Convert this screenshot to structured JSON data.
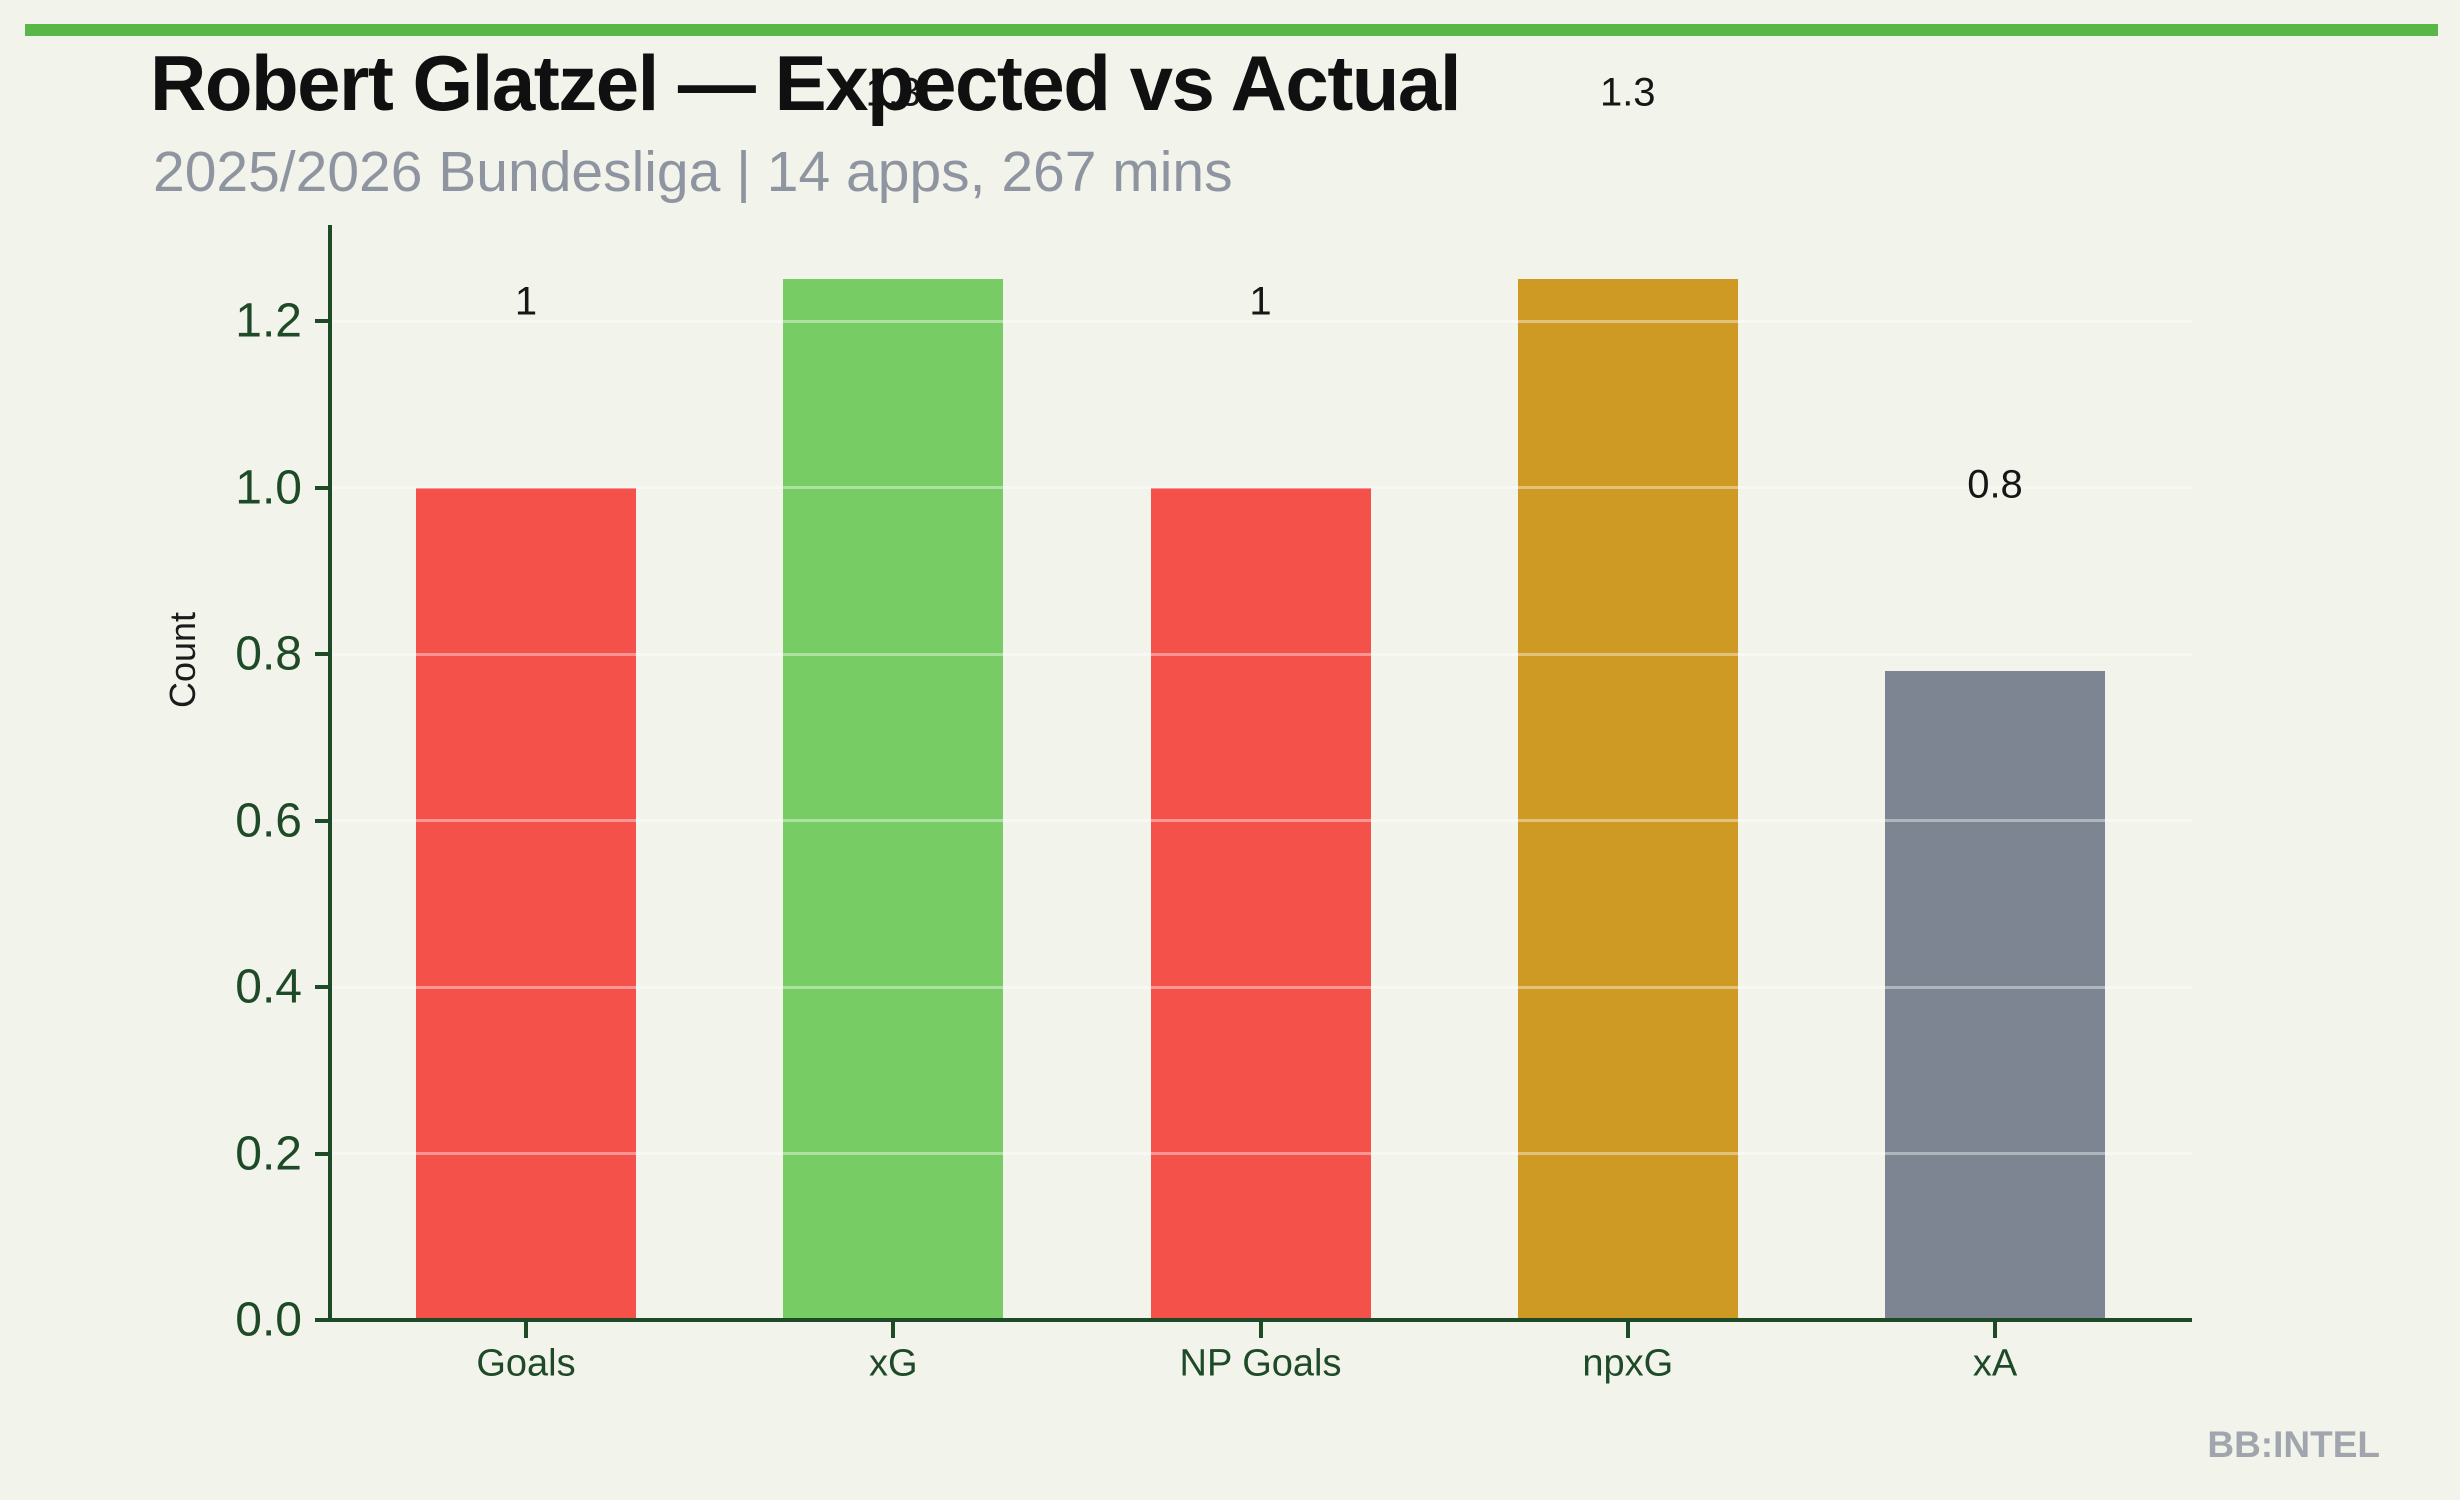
{
  "page": {
    "background_color": "#f2f3eb",
    "accent_strip_color": "#5bb648",
    "watermark": "BB:INTEL",
    "watermark_color": "#a1a6ae"
  },
  "header": {
    "title": "Robert Glatzel — Expected vs Actual",
    "subtitle": "2025/2026 Bundesliga | 14 apps, 267 mins",
    "title_color": "#101010",
    "subtitle_color": "#8f95a0"
  },
  "chart_data": {
    "type": "bar",
    "title": "Robert Glatzel — Expected vs Actual",
    "subtitle": "2025/2026 Bundesliga | 14 apps, 267 mins",
    "ylabel": "Count",
    "xlabel": "",
    "categories": [
      "Goals",
      "xG",
      "NP Goals",
      "npxG",
      "xA"
    ],
    "values": [
      1.0,
      1.25,
      1.0,
      1.25,
      0.78
    ],
    "bar_value_labels": [
      "1",
      "1.3",
      "1",
      "1.3",
      "0.8"
    ],
    "bar_colors": [
      "#f5514b",
      "#77cd63",
      "#f5514b",
      "#cf9a23",
      "#7d8492"
    ],
    "ytick_values": [
      0.0,
      0.2,
      0.4,
      0.6,
      0.8,
      1.0,
      1.2
    ],
    "ytick_labels": [
      "0.0",
      "0.2",
      "0.4",
      "0.6",
      "0.8",
      "1.0",
      "1.2"
    ],
    "ylim": [
      0,
      1.315
    ],
    "grid": "horizontal-white-lines-over-bars",
    "legend": "none",
    "axis_color": "#1e4a28",
    "tick_label_color": "#1e4a28",
    "data_label_color": "#161616",
    "watermark": "BB:INTEL"
  }
}
